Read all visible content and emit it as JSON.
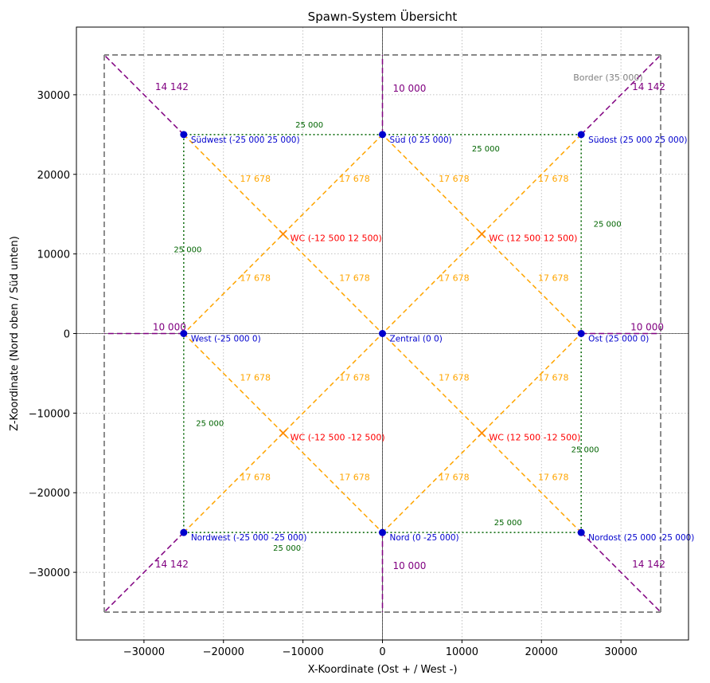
{
  "chart_data": {
    "type": "scatter",
    "title": "Spawn-System Übersicht",
    "xlabel": "X-Koordinate (Ost + / West -)",
    "ylabel": "Z-Koordinate (Nord oben / Süd unten)",
    "xlim": [
      -38500,
      38500
    ],
    "ylim": [
      38500,
      -38500
    ],
    "y_axis_inverted": true,
    "grid": true,
    "x_ticks": [
      -30000,
      -20000,
      -10000,
      0,
      10000,
      20000,
      30000
    ],
    "y_ticks": [
      -30000,
      -20000,
      -10000,
      0,
      10000,
      20000,
      30000
    ],
    "x_tick_labels": [
      "−30000",
      "−20000",
      "−10000",
      "0",
      "10000",
      "20000",
      "30000"
    ],
    "y_tick_labels": [
      "−30000",
      "−20000",
      "−10000",
      "0",
      "10000",
      "20000",
      "30000"
    ],
    "colors": {
      "spawn": "#0000cd",
      "spawn_label": "#0000cd",
      "wc": "#ff8c00",
      "wc_label": "#ff0000",
      "diagonal": "#ffa500",
      "square": "#006400",
      "border": "#808080",
      "border_link": "#800080"
    },
    "spawn_points": [
      {
        "label": "Nordwest (-25 000  -25 000)",
        "x": -25000,
        "z": -25000
      },
      {
        "label": "Nord (0  -25 000)",
        "x": 0,
        "z": -25000
      },
      {
        "label": "Nordost (25 000  -25 000)",
        "x": 25000,
        "z": -25000
      },
      {
        "label": "West (-25 000  0)",
        "x": -25000,
        "z": 0
      },
      {
        "label": "Zentral (0  0)",
        "x": 0,
        "z": 0
      },
      {
        "label": "Ost (25 000  0)",
        "x": 25000,
        "z": 0
      },
      {
        "label": "Südwest (-25 000  25 000)",
        "x": -25000,
        "z": 25000
      },
      {
        "label": "Süd (0  25 000)",
        "x": 0,
        "z": 25000
      },
      {
        "label": "Südost (25 000  25 000)",
        "x": 25000,
        "z": 25000
      }
    ],
    "wc_points": [
      {
        "label": "WC (-12 500  -12 500)",
        "x": -12500,
        "z": -12500
      },
      {
        "label": "WC (12 500  -12 500)",
        "x": 12500,
        "z": -12500
      },
      {
        "label": "WC (-12 500  12 500)",
        "x": -12500,
        "z": 12500
      },
      {
        "label": "WC (12 500  12 500)",
        "x": 12500,
        "z": 12500
      }
    ],
    "square_label": "25 000",
    "diagonal_label": "17 678",
    "border_diag_label": "14 142",
    "border_axis_label": "10 000",
    "border_label": "Border (35 000)",
    "border_extent": 35000
  }
}
